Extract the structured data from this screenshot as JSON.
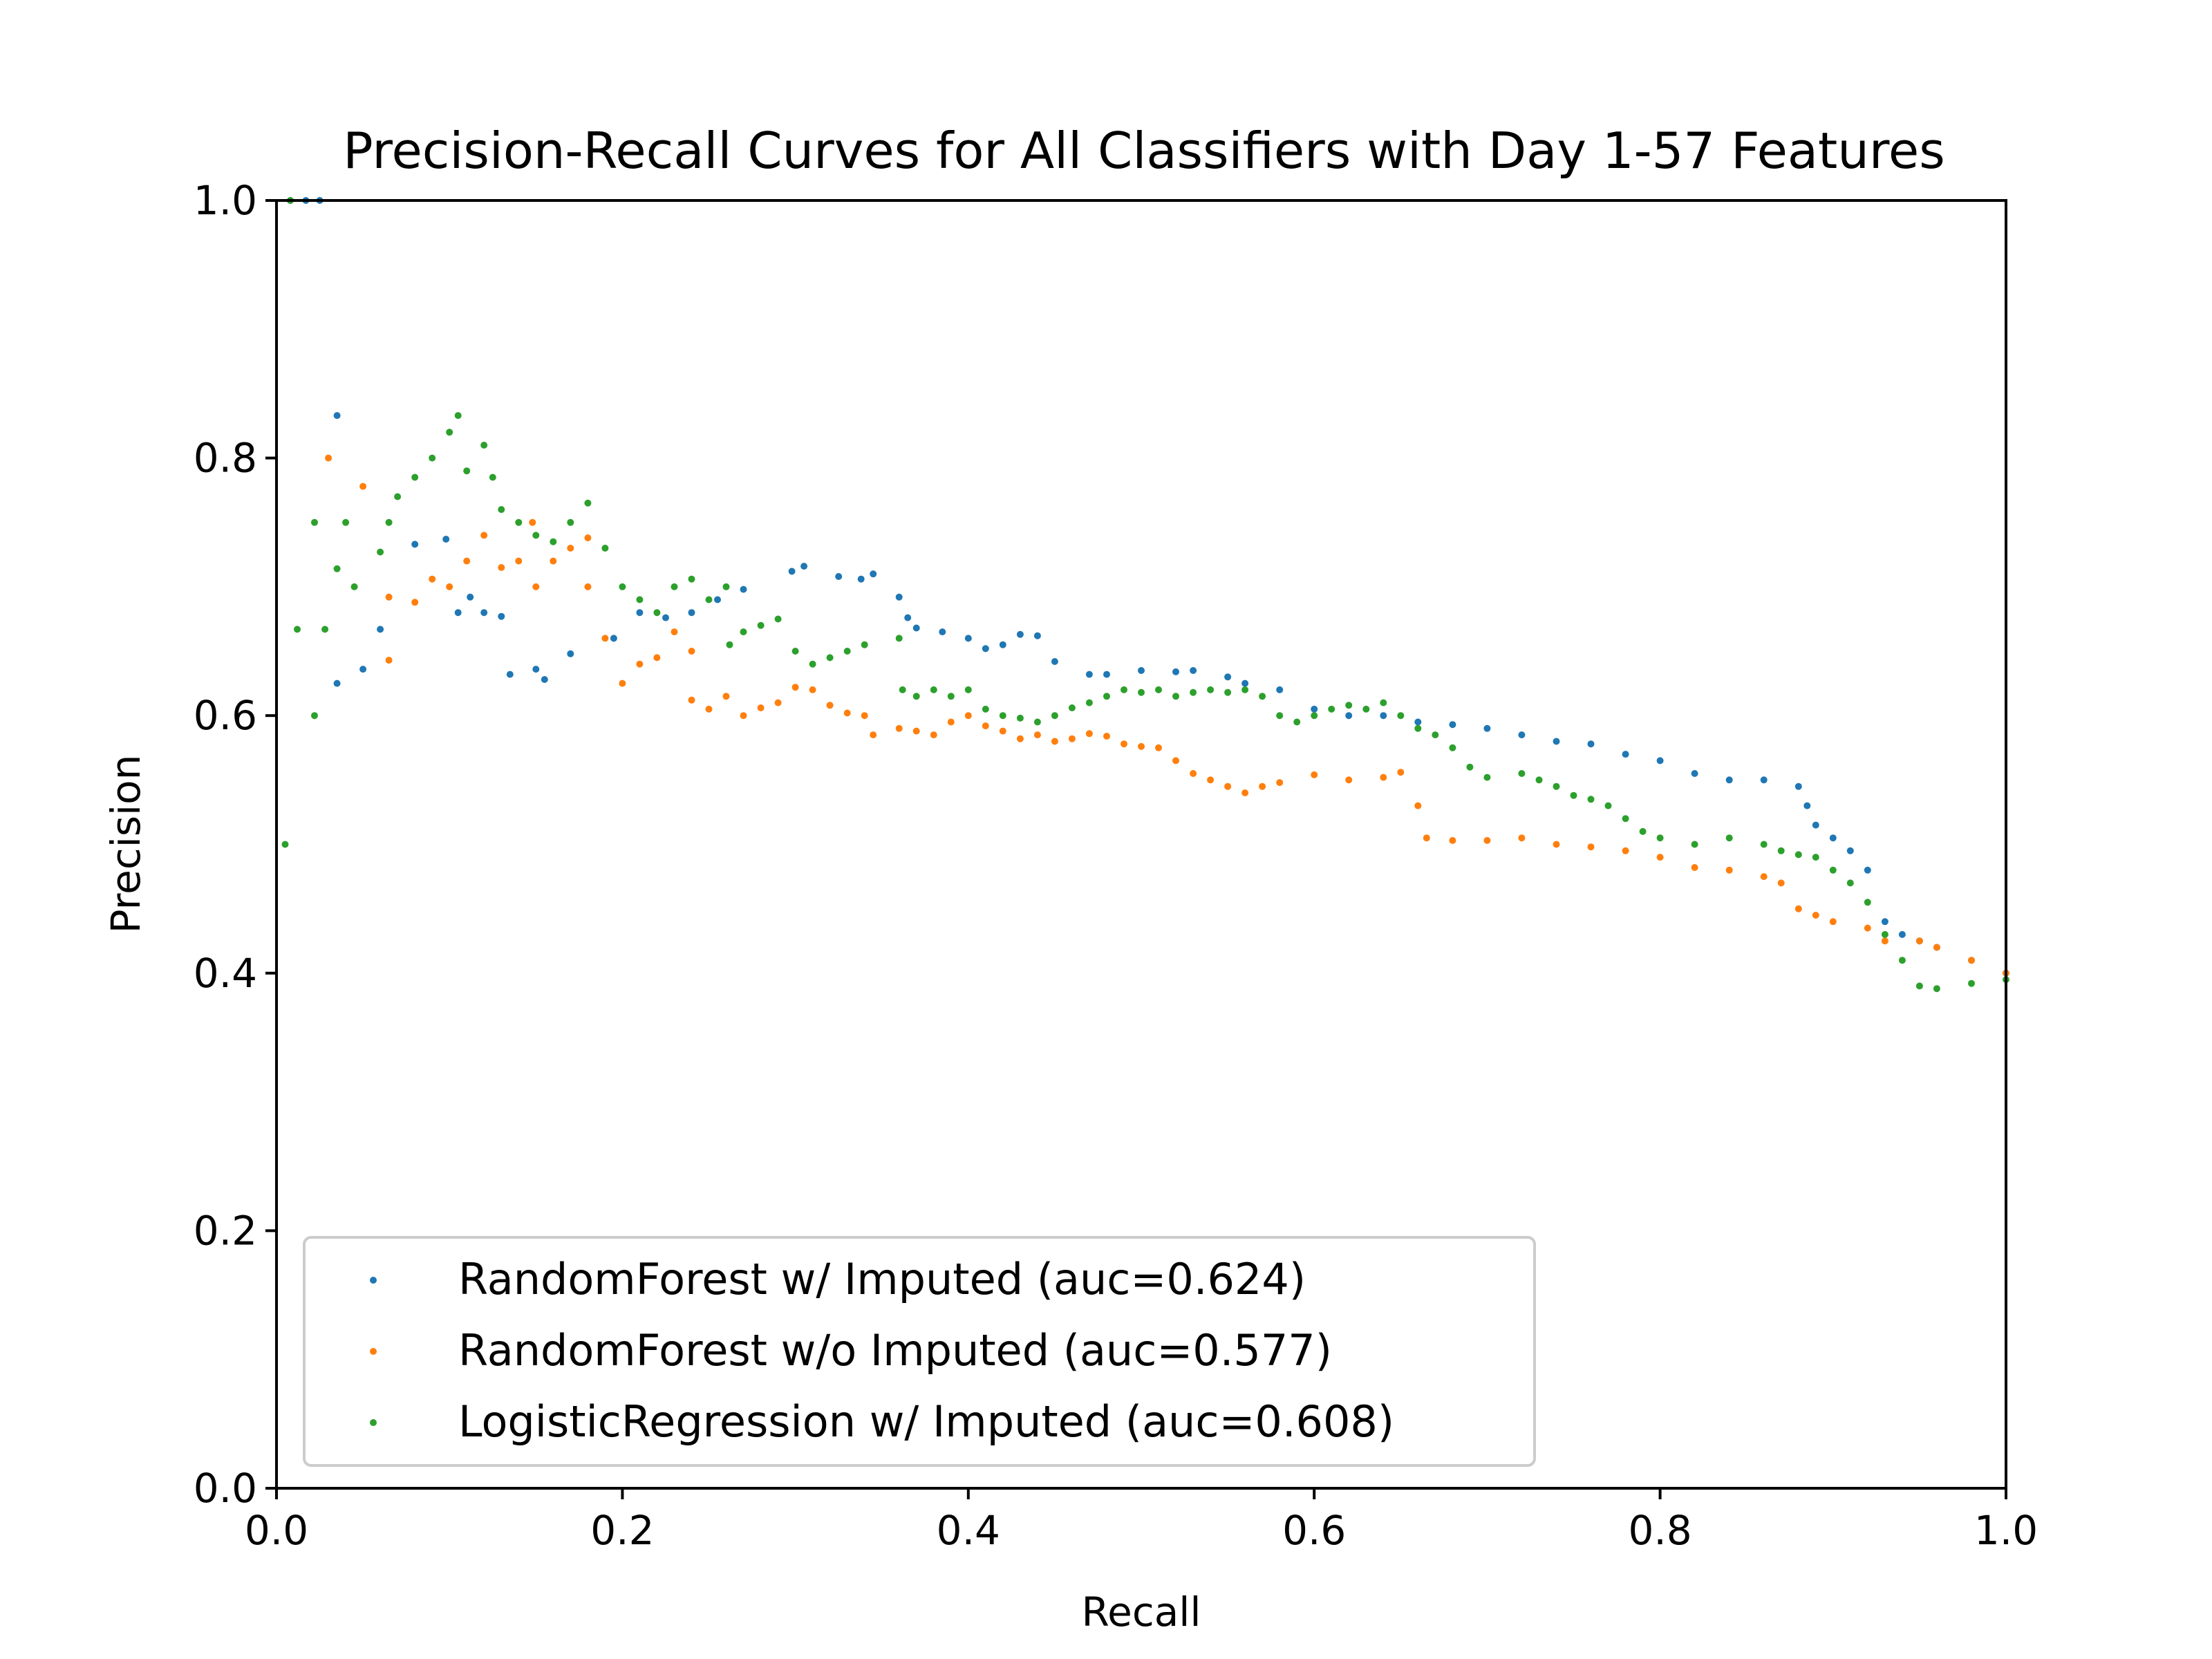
{
  "chart_data": {
    "type": "scatter",
    "title": "Precision-Recall Curves for All Classifiers with Day 1-57 Features",
    "xlabel": "Recall",
    "ylabel": "Precision",
    "xlim": [
      0.0,
      1.0
    ],
    "ylim": [
      0.0,
      1.0
    ],
    "xticks": [
      "0.0",
      "0.2",
      "0.4",
      "0.6",
      "0.8",
      "1.0"
    ],
    "yticks": [
      "0.0",
      "0.2",
      "0.4",
      "0.6",
      "0.8",
      "1.0"
    ],
    "grid": false,
    "legend_position": "lower-left",
    "series": [
      {
        "name": "RandomForest w/ Imputed (auc=0.624)",
        "color": "#1f77b4",
        "points": [
          [
            0.008,
            1.0
          ],
          [
            0.017,
            1.0
          ],
          [
            0.025,
            1.0
          ],
          [
            0.035,
            0.833
          ],
          [
            0.035,
            0.625
          ],
          [
            0.05,
            0.636
          ],
          [
            0.06,
            0.667
          ],
          [
            0.08,
            0.733
          ],
          [
            0.098,
            0.737
          ],
          [
            0.105,
            0.68
          ],
          [
            0.112,
            0.692
          ],
          [
            0.12,
            0.68
          ],
          [
            0.13,
            0.677
          ],
          [
            0.135,
            0.632
          ],
          [
            0.15,
            0.636
          ],
          [
            0.155,
            0.628
          ],
          [
            0.17,
            0.648
          ],
          [
            0.195,
            0.66
          ],
          [
            0.21,
            0.68
          ],
          [
            0.225,
            0.676
          ],
          [
            0.24,
            0.68
          ],
          [
            0.255,
            0.69
          ],
          [
            0.27,
            0.698
          ],
          [
            0.298,
            0.712
          ],
          [
            0.305,
            0.716
          ],
          [
            0.325,
            0.708
          ],
          [
            0.338,
            0.706
          ],
          [
            0.345,
            0.71
          ],
          [
            0.36,
            0.692
          ],
          [
            0.365,
            0.676
          ],
          [
            0.37,
            0.668
          ],
          [
            0.385,
            0.665
          ],
          [
            0.4,
            0.66
          ],
          [
            0.41,
            0.652
          ],
          [
            0.42,
            0.655
          ],
          [
            0.43,
            0.663
          ],
          [
            0.44,
            0.662
          ],
          [
            0.45,
            0.642
          ],
          [
            0.47,
            0.632
          ],
          [
            0.48,
            0.632
          ],
          [
            0.5,
            0.635
          ],
          [
            0.52,
            0.634
          ],
          [
            0.53,
            0.635
          ],
          [
            0.55,
            0.63
          ],
          [
            0.56,
            0.625
          ],
          [
            0.58,
            0.62
          ],
          [
            0.6,
            0.605
          ],
          [
            0.62,
            0.6
          ],
          [
            0.64,
            0.6
          ],
          [
            0.66,
            0.595
          ],
          [
            0.68,
            0.593
          ],
          [
            0.7,
            0.59
          ],
          [
            0.72,
            0.585
          ],
          [
            0.74,
            0.58
          ],
          [
            0.76,
            0.578
          ],
          [
            0.78,
            0.57
          ],
          [
            0.8,
            0.565
          ],
          [
            0.82,
            0.555
          ],
          [
            0.84,
            0.55
          ],
          [
            0.86,
            0.55
          ],
          [
            0.88,
            0.545
          ],
          [
            0.885,
            0.53
          ],
          [
            0.89,
            0.515
          ],
          [
            0.9,
            0.505
          ],
          [
            0.91,
            0.495
          ],
          [
            0.92,
            0.48
          ],
          [
            0.93,
            0.44
          ],
          [
            0.94,
            0.43
          ],
          [
            0.95,
            0.425
          ],
          [
            0.96,
            0.42
          ],
          [
            0.98,
            0.41
          ],
          [
            1.0,
            0.4
          ]
        ]
      },
      {
        "name": "RandomForest w/o Imputed (auc=0.577)",
        "color": "#ff7f0e",
        "points": [
          [
            0.03,
            0.8
          ],
          [
            0.05,
            0.778
          ],
          [
            0.065,
            0.692
          ],
          [
            0.065,
            0.643
          ],
          [
            0.08,
            0.688
          ],
          [
            0.09,
            0.706
          ],
          [
            0.1,
            0.7
          ],
          [
            0.11,
            0.72
          ],
          [
            0.12,
            0.74
          ],
          [
            0.13,
            0.715
          ],
          [
            0.14,
            0.72
          ],
          [
            0.148,
            0.75
          ],
          [
            0.15,
            0.7
          ],
          [
            0.16,
            0.72
          ],
          [
            0.17,
            0.73
          ],
          [
            0.18,
            0.738
          ],
          [
            0.18,
            0.7
          ],
          [
            0.19,
            0.66
          ],
          [
            0.2,
            0.625
          ],
          [
            0.21,
            0.64
          ],
          [
            0.22,
            0.645
          ],
          [
            0.23,
            0.665
          ],
          [
            0.24,
            0.65
          ],
          [
            0.24,
            0.612
          ],
          [
            0.25,
            0.605
          ],
          [
            0.26,
            0.615
          ],
          [
            0.27,
            0.6
          ],
          [
            0.28,
            0.606
          ],
          [
            0.29,
            0.61
          ],
          [
            0.3,
            0.622
          ],
          [
            0.31,
            0.62
          ],
          [
            0.32,
            0.608
          ],
          [
            0.33,
            0.602
          ],
          [
            0.34,
            0.6
          ],
          [
            0.345,
            0.585
          ],
          [
            0.36,
            0.59
          ],
          [
            0.37,
            0.588
          ],
          [
            0.38,
            0.585
          ],
          [
            0.39,
            0.595
          ],
          [
            0.4,
            0.6
          ],
          [
            0.41,
            0.592
          ],
          [
            0.42,
            0.588
          ],
          [
            0.43,
            0.582
          ],
          [
            0.44,
            0.585
          ],
          [
            0.45,
            0.58
          ],
          [
            0.46,
            0.582
          ],
          [
            0.47,
            0.586
          ],
          [
            0.48,
            0.584
          ],
          [
            0.49,
            0.578
          ],
          [
            0.5,
            0.576
          ],
          [
            0.51,
            0.575
          ],
          [
            0.52,
            0.565
          ],
          [
            0.53,
            0.555
          ],
          [
            0.54,
            0.55
          ],
          [
            0.55,
            0.545
          ],
          [
            0.56,
            0.54
          ],
          [
            0.57,
            0.545
          ],
          [
            0.58,
            0.548
          ],
          [
            0.6,
            0.554
          ],
          [
            0.62,
            0.55
          ],
          [
            0.64,
            0.552
          ],
          [
            0.65,
            0.556
          ],
          [
            0.66,
            0.53
          ],
          [
            0.665,
            0.505
          ],
          [
            0.68,
            0.503
          ],
          [
            0.7,
            0.503
          ],
          [
            0.72,
            0.505
          ],
          [
            0.74,
            0.5
          ],
          [
            0.76,
            0.498
          ],
          [
            0.78,
            0.495
          ],
          [
            0.8,
            0.49
          ],
          [
            0.82,
            0.482
          ],
          [
            0.84,
            0.48
          ],
          [
            0.86,
            0.475
          ],
          [
            0.87,
            0.47
          ],
          [
            0.88,
            0.45
          ],
          [
            0.89,
            0.445
          ],
          [
            0.9,
            0.44
          ],
          [
            0.92,
            0.435
          ],
          [
            0.93,
            0.425
          ],
          [
            0.95,
            0.425
          ],
          [
            0.96,
            0.42
          ],
          [
            0.98,
            0.41
          ],
          [
            1.0,
            0.4
          ]
        ]
      },
      {
        "name": "LogisticRegression w/ Imputed (auc=0.608)",
        "color": "#2ca02c",
        "points": [
          [
            0.005,
            0.5
          ],
          [
            0.008,
            1.0
          ],
          [
            0.012,
            0.667
          ],
          [
            0.022,
            0.75
          ],
          [
            0.022,
            0.6
          ],
          [
            0.028,
            0.667
          ],
          [
            0.035,
            0.714
          ],
          [
            0.04,
            0.75
          ],
          [
            0.045,
            0.7
          ],
          [
            0.06,
            0.727
          ],
          [
            0.065,
            0.75
          ],
          [
            0.07,
            0.77
          ],
          [
            0.08,
            0.785
          ],
          [
            0.09,
            0.8
          ],
          [
            0.1,
            0.82
          ],
          [
            0.105,
            0.833
          ],
          [
            0.11,
            0.79
          ],
          [
            0.12,
            0.81
          ],
          [
            0.125,
            0.785
          ],
          [
            0.13,
            0.76
          ],
          [
            0.14,
            0.75
          ],
          [
            0.15,
            0.74
          ],
          [
            0.16,
            0.735
          ],
          [
            0.17,
            0.75
          ],
          [
            0.18,
            0.765
          ],
          [
            0.19,
            0.73
          ],
          [
            0.2,
            0.7
          ],
          [
            0.21,
            0.69
          ],
          [
            0.22,
            0.68
          ],
          [
            0.23,
            0.7
          ],
          [
            0.24,
            0.706
          ],
          [
            0.25,
            0.69
          ],
          [
            0.26,
            0.7
          ],
          [
            0.262,
            0.655
          ],
          [
            0.27,
            0.665
          ],
          [
            0.28,
            0.67
          ],
          [
            0.29,
            0.675
          ],
          [
            0.3,
            0.65
          ],
          [
            0.31,
            0.64
          ],
          [
            0.32,
            0.645
          ],
          [
            0.33,
            0.65
          ],
          [
            0.34,
            0.655
          ],
          [
            0.36,
            0.66
          ],
          [
            0.362,
            0.62
          ],
          [
            0.37,
            0.615
          ],
          [
            0.38,
            0.62
          ],
          [
            0.39,
            0.615
          ],
          [
            0.4,
            0.62
          ],
          [
            0.41,
            0.605
          ],
          [
            0.42,
            0.6
          ],
          [
            0.43,
            0.598
          ],
          [
            0.44,
            0.595
          ],
          [
            0.45,
            0.6
          ],
          [
            0.46,
            0.606
          ],
          [
            0.47,
            0.61
          ],
          [
            0.48,
            0.615
          ],
          [
            0.49,
            0.62
          ],
          [
            0.5,
            0.618
          ],
          [
            0.51,
            0.62
          ],
          [
            0.52,
            0.615
          ],
          [
            0.53,
            0.618
          ],
          [
            0.54,
            0.62
          ],
          [
            0.55,
            0.618
          ],
          [
            0.56,
            0.62
          ],
          [
            0.57,
            0.615
          ],
          [
            0.58,
            0.6
          ],
          [
            0.59,
            0.595
          ],
          [
            0.6,
            0.6
          ],
          [
            0.61,
            0.605
          ],
          [
            0.62,
            0.608
          ],
          [
            0.63,
            0.605
          ],
          [
            0.64,
            0.61
          ],
          [
            0.65,
            0.6
          ],
          [
            0.66,
            0.59
          ],
          [
            0.67,
            0.585
          ],
          [
            0.68,
            0.575
          ],
          [
            0.69,
            0.56
          ],
          [
            0.7,
            0.552
          ],
          [
            0.72,
            0.555
          ],
          [
            0.73,
            0.55
          ],
          [
            0.74,
            0.545
          ],
          [
            0.75,
            0.538
          ],
          [
            0.76,
            0.535
          ],
          [
            0.77,
            0.53
          ],
          [
            0.78,
            0.52
          ],
          [
            0.79,
            0.51
          ],
          [
            0.8,
            0.505
          ],
          [
            0.82,
            0.5
          ],
          [
            0.84,
            0.505
          ],
          [
            0.86,
            0.5
          ],
          [
            0.87,
            0.495
          ],
          [
            0.88,
            0.492
          ],
          [
            0.89,
            0.49
          ],
          [
            0.9,
            0.48
          ],
          [
            0.91,
            0.47
          ],
          [
            0.92,
            0.455
          ],
          [
            0.93,
            0.43
          ],
          [
            0.94,
            0.41
          ],
          [
            0.95,
            0.39
          ],
          [
            0.96,
            0.388
          ],
          [
            0.98,
            0.392
          ],
          [
            1.0,
            0.395
          ]
        ]
      }
    ]
  }
}
